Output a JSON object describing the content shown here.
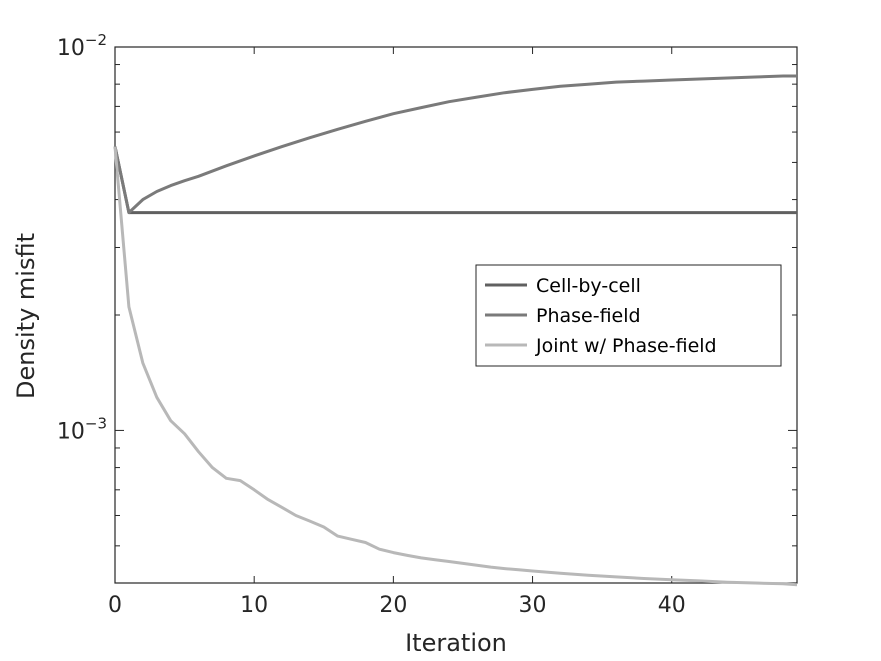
{
  "chart_data": {
    "type": "line",
    "xlabel": "Iteration",
    "ylabel": "Density misfit",
    "xlim": [
      0,
      49
    ],
    "ylim": [
      0.0004,
      0.01
    ],
    "yscale": "log",
    "x_ticks": [
      {
        "value": 0,
        "label": "0"
      },
      {
        "value": 10,
        "label": "10"
      },
      {
        "value": 20,
        "label": "20"
      },
      {
        "value": 30,
        "label": "30"
      },
      {
        "value": 40,
        "label": "40"
      }
    ],
    "y_ticks": [
      {
        "value": 0.01,
        "base": "10",
        "exp": "−2"
      },
      {
        "value": 0.001,
        "base": "10",
        "exp": "−3"
      }
    ],
    "grid": false,
    "legend_position": "center-right",
    "series": [
      {
        "name": "Cell-by-cell",
        "color": "#606060",
        "x": [
          0,
          1,
          49
        ],
        "y": [
          0.0055,
          0.0037,
          0.0037
        ]
      },
      {
        "name": "Phase-field",
        "color": "#7a7a7a",
        "x": [
          0,
          1,
          2,
          3,
          4,
          5,
          6,
          8,
          10,
          12,
          14,
          16,
          18,
          20,
          22,
          24,
          26,
          28,
          30,
          32,
          34,
          36,
          38,
          40,
          42,
          44,
          46,
          48,
          49
        ],
        "y": [
          0.0055,
          0.0037,
          0.004,
          0.0042,
          0.00435,
          0.00448,
          0.0046,
          0.0049,
          0.0052,
          0.0055,
          0.0058,
          0.0061,
          0.0064,
          0.0067,
          0.00695,
          0.0072,
          0.0074,
          0.0076,
          0.00775,
          0.0079,
          0.008,
          0.0081,
          0.00815,
          0.0082,
          0.00825,
          0.0083,
          0.00835,
          0.0084,
          0.0084
        ]
      },
      {
        "name": "Joint w/ Phase-field",
        "color": "#b8b8b8",
        "x": [
          0,
          1,
          2,
          3,
          4,
          5,
          6,
          7,
          8,
          9,
          10,
          11,
          12,
          13,
          14,
          15,
          16,
          17,
          18,
          19,
          20,
          21,
          22,
          23,
          24,
          25,
          26,
          27,
          28,
          29,
          30,
          32,
          34,
          36,
          38,
          40,
          42,
          44,
          46,
          48,
          49
        ],
        "y": [
          0.0055,
          0.0021,
          0.0015,
          0.00122,
          0.00106,
          0.00098,
          0.00088,
          0.0008,
          0.00075,
          0.00074,
          0.0007,
          0.00066,
          0.00063,
          0.0006,
          0.00058,
          0.00056,
          0.00053,
          0.00052,
          0.00051,
          0.00049,
          0.00048,
          0.000472,
          0.000465,
          0.00046,
          0.000455,
          0.00045,
          0.000445,
          0.00044,
          0.000436,
          0.000433,
          0.00043,
          0.000424,
          0.000419,
          0.000415,
          0.000411,
          0.000408,
          0.000405,
          0.000402,
          0.0004,
          0.000398,
          0.000396
        ]
      }
    ]
  }
}
